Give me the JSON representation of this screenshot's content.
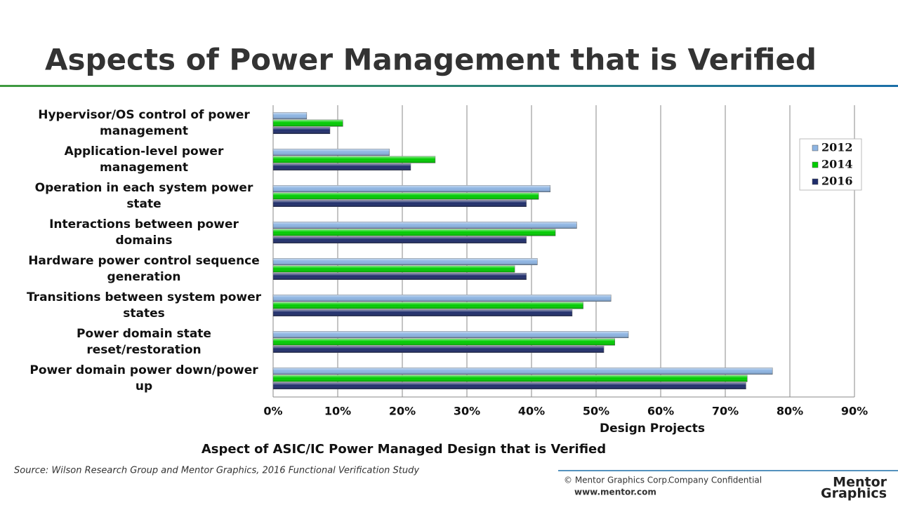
{
  "slide": {
    "title": "Aspects of Power Management that is Verified",
    "source": "Source:  Wilson Research Group and Mentor Graphics, 2016 Functional Verification Study",
    "copyright": "© Mentor Graphics Corp.",
    "confidential": "Company Confidential",
    "website": "www.mentor.com",
    "logo_top": "Mentor",
    "logo_bottom": "Graphics"
  },
  "chart_data": {
    "type": "hbar",
    "title": "Aspect of ASIC/IC Power Managed Design that is Verified",
    "x_label": "Design Projects",
    "categories": [
      "Hypervisor/OS control of power management",
      "Application-level power management",
      "Operation in each system power state",
      "Interactions between power domains",
      "Hardware power control sequence generation",
      "Transitions between system power states",
      "Power domain state reset/restoration",
      "Power domain power down/power up"
    ],
    "series": [
      {
        "name": "2012",
        "color": "#8db4e2",
        "values": [
          5.2,
          18.0,
          42.9,
          47.0,
          40.9,
          52.3,
          55.0,
          77.3
        ]
      },
      {
        "name": "2014",
        "color": "#00cc00",
        "values": [
          10.8,
          25.1,
          41.1,
          43.7,
          37.4,
          48.0,
          52.9,
          73.4
        ]
      },
      {
        "name": "2016",
        "color": "#1f2d6b",
        "values": [
          8.8,
          21.3,
          39.2,
          39.2,
          39.2,
          46.3,
          51.2,
          73.2
        ]
      }
    ],
    "xlim": [
      0,
      90
    ],
    "xticks": [
      {
        "value": 0,
        "label": "0%"
      },
      {
        "value": 10,
        "label": "10%"
      },
      {
        "value": 20,
        "label": "20%"
      },
      {
        "value": 30,
        "label": "30%"
      },
      {
        "value": 40,
        "label": "40%"
      },
      {
        "value": 50,
        "label": "50%"
      },
      {
        "value": 60,
        "label": "60%"
      },
      {
        "value": 70,
        "label": "70%"
      },
      {
        "value": 80,
        "label": "80%"
      },
      {
        "value": 90,
        "label": "90%"
      }
    ],
    "grid": true,
    "legend": "right"
  }
}
